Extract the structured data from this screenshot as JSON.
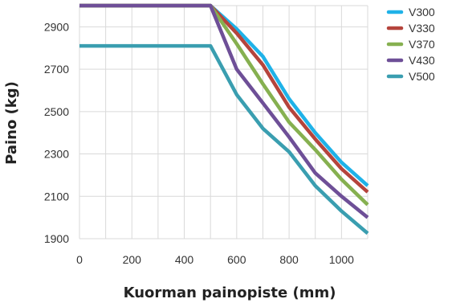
{
  "chart_data": {
    "type": "line",
    "xlabel": "Kuorman painopiste (mm)",
    "ylabel": "Paino (kg)",
    "xlim": [
      0,
      1100
    ],
    "ylim": [
      1900,
      3000
    ],
    "xticks": [
      0,
      200,
      400,
      600,
      800,
      1000
    ],
    "yticks": [
      1900,
      2100,
      2300,
      2500,
      2700,
      2900
    ],
    "grid": true,
    "legend_position": "right",
    "series": [
      {
        "name": "V300",
        "color": "#1fb2e8",
        "x": [
          0,
          500,
          600,
          700,
          800,
          900,
          1000,
          1100
        ],
        "y": [
          3000,
          3000,
          2890,
          2760,
          2560,
          2400,
          2260,
          2150
        ]
      },
      {
        "name": "V330",
        "color": "#b5443c",
        "x": [
          0,
          500,
          600,
          700,
          800,
          900,
          1000,
          1100
        ],
        "y": [
          3000,
          3000,
          2870,
          2720,
          2520,
          2370,
          2230,
          2120
        ]
      },
      {
        "name": "V370",
        "color": "#86b050",
        "x": [
          0,
          500,
          600,
          700,
          800,
          900,
          1000,
          1100
        ],
        "y": [
          3000,
          3000,
          2820,
          2630,
          2450,
          2320,
          2180,
          2060
        ]
      },
      {
        "name": "V430",
        "color": "#6e4f97",
        "x": [
          0,
          500,
          600,
          700,
          800,
          900,
          1000,
          1100
        ],
        "y": [
          3000,
          3000,
          2700,
          2540,
          2380,
          2210,
          2100,
          2000
        ]
      },
      {
        "name": "V500",
        "color": "#3a9eb0",
        "x": [
          0,
          500,
          600,
          700,
          800,
          900,
          1000,
          1100
        ],
        "y": [
          2810,
          2810,
          2580,
          2420,
          2310,
          2150,
          2030,
          1925
        ]
      }
    ]
  }
}
